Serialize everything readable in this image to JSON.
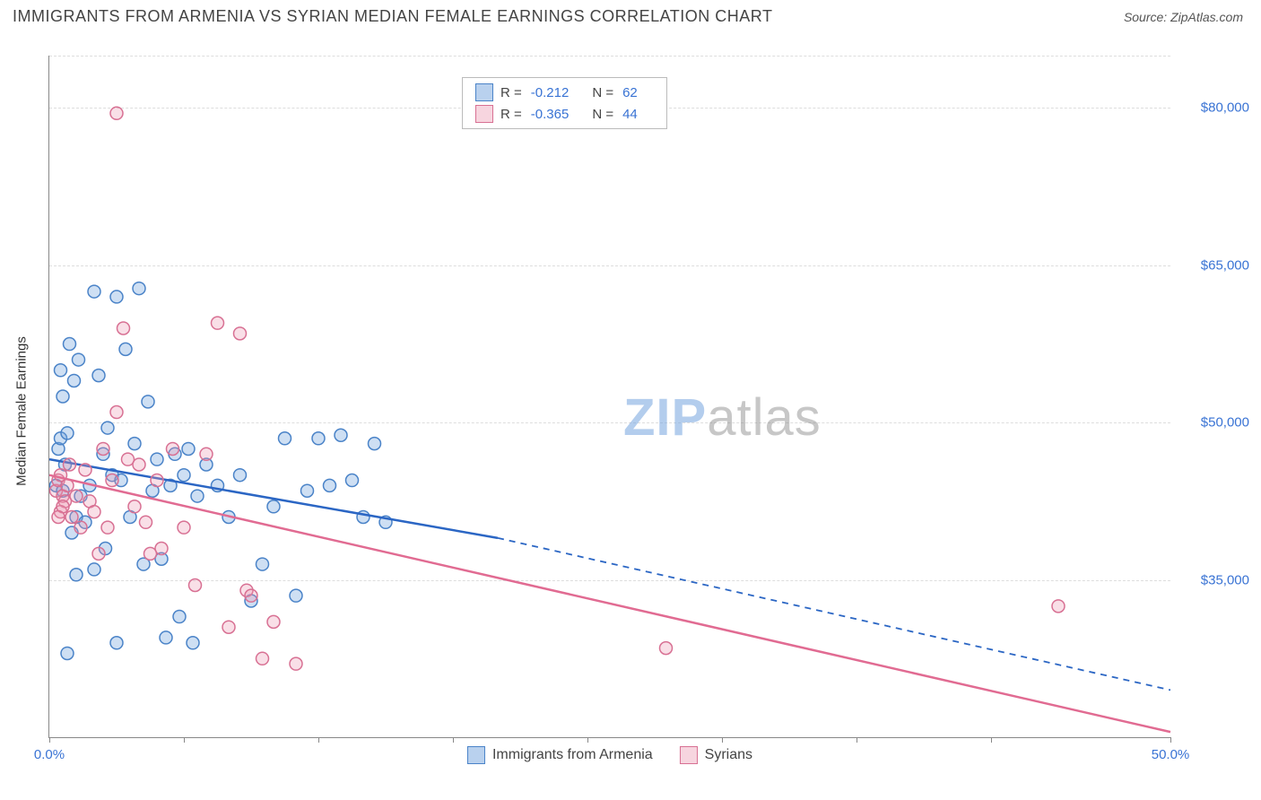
{
  "header": {
    "title": "IMMIGRANTS FROM ARMENIA VS SYRIAN MEDIAN FEMALE EARNINGS CORRELATION CHART",
    "source_label": "Source: ",
    "source_value": "ZipAtlas.com"
  },
  "watermark": {
    "part1": "ZIP",
    "part2": "atlas"
  },
  "chart": {
    "type": "scatter",
    "y_axis_title": "Median Female Earnings",
    "xlim": [
      0,
      50
    ],
    "ylim": [
      20000,
      85000
    ],
    "x_ticks_pct": [
      0,
      6,
      12,
      18,
      24,
      30,
      36,
      42,
      50
    ],
    "x_labeled": {
      "0": "0.0%",
      "50": "50.0%"
    },
    "y_grid": [
      35000,
      50000,
      65000,
      80000
    ],
    "y_labels": {
      "35000": "$35,000",
      "50000": "$50,000",
      "65000": "$65,000",
      "80000": "$80,000"
    },
    "background_color": "#ffffff",
    "grid_color": "#dddddd",
    "axis_color": "#888888",
    "tick_label_color": "#3973d4",
    "marker_radius": 7,
    "marker_stroke_width": 1.5,
    "series": [
      {
        "key": "armenia",
        "legend_label": "Immigrants from Armenia",
        "color_fill": "rgba(116,164,222,0.35)",
        "color_stroke": "#4a83c8",
        "line_color": "#2b66c4",
        "trend": {
          "x1": 0,
          "y1": 46500,
          "x2_solid": 20,
          "y2_solid": 39000,
          "x2_dash": 50,
          "y2_dash": 24500
        },
        "stats": {
          "R": "-0.212",
          "N": "62"
        },
        "points": [
          [
            0.3,
            44000
          ],
          [
            0.4,
            47500
          ],
          [
            0.5,
            48500
          ],
          [
            0.6,
            43500
          ],
          [
            0.7,
            46000
          ],
          [
            0.8,
            49000
          ],
          [
            0.5,
            55000
          ],
          [
            0.6,
            52500
          ],
          [
            0.9,
            57500
          ],
          [
            1.1,
            54000
          ],
          [
            1.3,
            56000
          ],
          [
            1.0,
            39500
          ],
          [
            1.2,
            41000
          ],
          [
            1.4,
            43000
          ],
          [
            1.6,
            40500
          ],
          [
            1.8,
            44000
          ],
          [
            2.0,
            62500
          ],
          [
            2.2,
            54500
          ],
          [
            2.4,
            47000
          ],
          [
            2.6,
            49500
          ],
          [
            2.8,
            45000
          ],
          [
            3.0,
            62000
          ],
          [
            3.2,
            44500
          ],
          [
            3.4,
            57000
          ],
          [
            3.6,
            41000
          ],
          [
            3.8,
            48000
          ],
          [
            4.0,
            62800
          ],
          [
            4.2,
            36500
          ],
          [
            4.4,
            52000
          ],
          [
            4.6,
            43500
          ],
          [
            4.8,
            46500
          ],
          [
            5.0,
            37000
          ],
          [
            5.2,
            29500
          ],
          [
            5.4,
            44000
          ],
          [
            5.6,
            47000
          ],
          [
            5.8,
            31500
          ],
          [
            6.0,
            45000
          ],
          [
            6.2,
            47500
          ],
          [
            6.4,
            29000
          ],
          [
            6.6,
            43000
          ],
          [
            7.0,
            46000
          ],
          [
            7.5,
            44000
          ],
          [
            8.0,
            41000
          ],
          [
            8.5,
            45000
          ],
          [
            9.0,
            33000
          ],
          [
            9.5,
            36500
          ],
          [
            10.0,
            42000
          ],
          [
            10.5,
            48500
          ],
          [
            11.0,
            33500
          ],
          [
            11.5,
            43500
          ],
          [
            12.0,
            48500
          ],
          [
            12.5,
            44000
          ],
          [
            13.0,
            48800
          ],
          [
            13.5,
            44500
          ],
          [
            14.0,
            41000
          ],
          [
            14.5,
            48000
          ],
          [
            15.0,
            40500
          ],
          [
            0.8,
            28000
          ],
          [
            1.2,
            35500
          ],
          [
            2.0,
            36000
          ],
          [
            2.5,
            38000
          ],
          [
            3.0,
            29000
          ]
        ]
      },
      {
        "key": "syrians",
        "legend_label": "Syrians",
        "color_fill": "rgba(235,150,175,0.30)",
        "color_stroke": "#d87093",
        "line_color": "#e16b92",
        "trend": {
          "x1": 0,
          "y1": 45000,
          "x2_solid": 50,
          "y2_solid": 20500,
          "x2_dash": 50,
          "y2_dash": 20500
        },
        "stats": {
          "R": "-0.365",
          "N": "44"
        },
        "points": [
          [
            0.3,
            43500
          ],
          [
            0.4,
            44500
          ],
          [
            0.5,
            45000
          ],
          [
            0.6,
            43000
          ],
          [
            0.7,
            42500
          ],
          [
            0.8,
            44000
          ],
          [
            0.5,
            41500
          ],
          [
            0.6,
            42000
          ],
          [
            0.9,
            46000
          ],
          [
            1.0,
            41000
          ],
          [
            1.2,
            43000
          ],
          [
            1.4,
            40000
          ],
          [
            1.6,
            45500
          ],
          [
            1.8,
            42500
          ],
          [
            2.0,
            41500
          ],
          [
            2.2,
            37500
          ],
          [
            2.4,
            47500
          ],
          [
            2.6,
            40000
          ],
          [
            2.8,
            44500
          ],
          [
            3.0,
            51000
          ],
          [
            3.3,
            59000
          ],
          [
            3.5,
            46500
          ],
          [
            3.8,
            42000
          ],
          [
            4.0,
            46000
          ],
          [
            4.3,
            40500
          ],
          [
            4.5,
            37500
          ],
          [
            4.8,
            44500
          ],
          [
            5.0,
            38000
          ],
          [
            5.5,
            47500
          ],
          [
            6.0,
            40000
          ],
          [
            6.5,
            34500
          ],
          [
            7.0,
            47000
          ],
          [
            7.5,
            59500
          ],
          [
            8.0,
            30500
          ],
          [
            8.5,
            58500
          ],
          [
            8.8,
            34000
          ],
          [
            9.0,
            33500
          ],
          [
            9.5,
            27500
          ],
          [
            10.0,
            31000
          ],
          [
            11.0,
            27000
          ],
          [
            3.0,
            79500
          ],
          [
            27.5,
            28500
          ],
          [
            45.0,
            32500
          ],
          [
            0.4,
            41000
          ]
        ]
      }
    ],
    "legend_top": {
      "R_label": "R =",
      "N_label": "N ="
    }
  }
}
